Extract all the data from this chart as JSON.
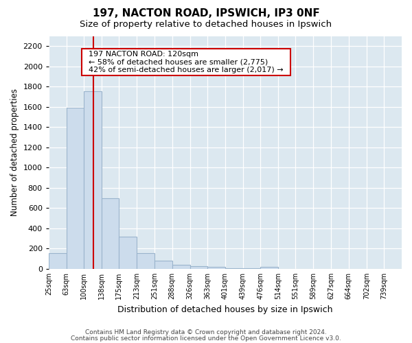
{
  "title1": "197, NACTON ROAD, IPSWICH, IP3 0NF",
  "title2": "Size of property relative to detached houses in Ipswich",
  "xlabel": "Distribution of detached houses by size in Ipswich",
  "ylabel": "Number of detached properties",
  "annotation_line1": "197 NACTON ROAD: 120sqm",
  "annotation_line2": "← 58% of detached houses are smaller (2,775)",
  "annotation_line3": "42% of semi-detached houses are larger (2,017) →",
  "property_size": 120,
  "bin_edges": [
    25,
    63,
    100,
    138,
    175,
    213,
    251,
    288,
    326,
    363,
    401,
    439,
    476,
    514,
    551,
    589,
    627,
    664,
    702,
    739,
    777
  ],
  "bar_heights": [
    155,
    1590,
    1755,
    700,
    315,
    155,
    82,
    43,
    27,
    20,
    8,
    3,
    18,
    0,
    0,
    0,
    0,
    0,
    0,
    0
  ],
  "bar_color": "#ccdcec",
  "bar_edge_color": "#9ab4cc",
  "vline_color": "#cc0000",
  "vline_x": 120,
  "annotation_box_color": "#cc0000",
  "footer1": "Contains HM Land Registry data © Crown copyright and database right 2024.",
  "footer2": "Contains public sector information licensed under the Open Government Licence v3.0.",
  "ylim": [
    0,
    2300
  ],
  "yticks": [
    0,
    200,
    400,
    600,
    800,
    1000,
    1200,
    1400,
    1600,
    1800,
    2000,
    2200
  ],
  "fig_bg_color": "#ffffff",
  "plot_bg_color": "#dce8f0"
}
